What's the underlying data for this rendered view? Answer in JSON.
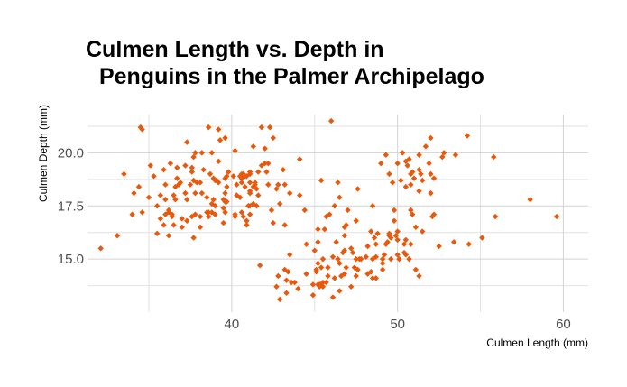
{
  "chart_data": {
    "type": "scatter",
    "title_line1": "Culmen Length vs. Depth in",
    "title_line2": " Penguins in the Palmer Archipelago",
    "xlabel": "Culmen Length (mm)",
    "ylabel": "Culmen Depth (mm)",
    "xlim": [
      31,
      61.5
    ],
    "ylim": [
      12.5,
      22
    ],
    "x_ticks": [
      40,
      50,
      60
    ],
    "x_tick_labels": [
      "40",
      "50",
      "60"
    ],
    "y_ticks": [
      15.0,
      17.5,
      20.0
    ],
    "y_tick_labels": [
      "15.0",
      "17.5",
      "20.0"
    ],
    "grid": true,
    "point_color": "#e8590c",
    "points": [
      [
        32.1,
        15.5
      ],
      [
        33.1,
        16.1
      ],
      [
        33.5,
        19.0
      ],
      [
        34.0,
        17.1
      ],
      [
        34.1,
        18.1
      ],
      [
        34.4,
        18.4
      ],
      [
        34.5,
        21.2
      ],
      [
        34.6,
        17.2
      ],
      [
        34.6,
        21.1
      ],
      [
        35.0,
        17.9
      ],
      [
        35.1,
        19.4
      ],
      [
        35.3,
        18.9
      ],
      [
        35.5,
        16.2
      ],
      [
        35.5,
        17.5
      ],
      [
        35.7,
        16.9
      ],
      [
        35.7,
        18.0
      ],
      [
        35.9,
        16.6
      ],
      [
        35.9,
        19.2
      ],
      [
        36.0,
        17.1
      ],
      [
        36.0,
        17.8
      ],
      [
        36.0,
        18.5
      ],
      [
        36.2,
        16.1
      ],
      [
        36.2,
        17.2
      ],
      [
        36.2,
        17.3
      ],
      [
        36.3,
        19.5
      ],
      [
        36.4,
        17.0
      ],
      [
        36.4,
        17.1
      ],
      [
        36.5,
        16.6
      ],
      [
        36.5,
        18.0
      ],
      [
        36.6,
        17.8
      ],
      [
        36.6,
        18.4
      ],
      [
        36.7,
        18.8
      ],
      [
        36.7,
        19.3
      ],
      [
        36.8,
        18.5
      ],
      [
        36.9,
        18.6
      ],
      [
        37.0,
        16.5
      ],
      [
        37.0,
        16.9
      ],
      [
        37.2,
        18.1
      ],
      [
        37.2,
        19.4
      ],
      [
        37.3,
        16.8
      ],
      [
        37.3,
        17.8
      ],
      [
        37.3,
        20.5
      ],
      [
        37.5,
        18.5
      ],
      [
        37.6,
        17.0
      ],
      [
        37.6,
        19.1
      ],
      [
        37.6,
        19.3
      ],
      [
        37.7,
        16.0
      ],
      [
        37.7,
        18.7
      ],
      [
        37.7,
        19.8
      ],
      [
        37.8,
        17.1
      ],
      [
        37.8,
        18.1
      ],
      [
        37.8,
        20.0
      ],
      [
        37.9,
        18.6
      ],
      [
        38.1,
        16.5
      ],
      [
        38.1,
        17.0
      ],
      [
        38.1,
        18.6
      ],
      [
        38.2,
        18.1
      ],
      [
        38.2,
        20.0
      ],
      [
        38.3,
        19.2
      ],
      [
        38.5,
        17.2
      ],
      [
        38.5,
        17.9
      ],
      [
        38.6,
        17.0
      ],
      [
        38.6,
        17.2
      ],
      [
        38.6,
        21.2
      ],
      [
        38.7,
        19.0
      ],
      [
        38.8,
        17.2
      ],
      [
        38.8,
        17.6
      ],
      [
        38.8,
        20.0
      ],
      [
        38.9,
        17.8
      ],
      [
        38.9,
        18.8
      ],
      [
        39.0,
        17.1
      ],
      [
        39.0,
        17.5
      ],
      [
        39.0,
        18.7
      ],
      [
        39.1,
        18.7
      ],
      [
        39.2,
        18.6
      ],
      [
        39.2,
        19.6
      ],
      [
        39.2,
        21.1
      ],
      [
        39.3,
        20.6
      ],
      [
        39.5,
        16.7
      ],
      [
        39.5,
        17.4
      ],
      [
        39.5,
        17.8
      ],
      [
        39.6,
        17.2
      ],
      [
        39.6,
        17.7
      ],
      [
        39.6,
        18.1
      ],
      [
        39.6,
        18.8
      ],
      [
        39.6,
        20.7
      ],
      [
        39.7,
        17.7
      ],
      [
        39.7,
        18.4
      ],
      [
        39.7,
        18.9
      ],
      [
        39.8,
        19.1
      ],
      [
        40.1,
        18.9
      ],
      [
        40.2,
        17.0
      ],
      [
        40.2,
        17.1
      ],
      [
        40.2,
        20.1
      ],
      [
        40.3,
        18.0
      ],
      [
        40.3,
        18.5
      ],
      [
        40.5,
        17.9
      ],
      [
        40.5,
        18.9
      ],
      [
        40.6,
        17.2
      ],
      [
        40.6,
        18.6
      ],
      [
        40.6,
        18.8
      ],
      [
        40.6,
        19.0
      ],
      [
        40.7,
        17.0
      ],
      [
        40.7,
        19.0
      ],
      [
        40.8,
        18.4
      ],
      [
        40.8,
        18.9
      ],
      [
        40.9,
        16.6
      ],
      [
        40.9,
        16.8
      ],
      [
        40.9,
        18.9
      ],
      [
        41.0,
        17.5
      ],
      [
        41.1,
        17.1
      ],
      [
        41.1,
        17.5
      ],
      [
        41.1,
        18.1
      ],
      [
        41.1,
        18.2
      ],
      [
        41.1,
        18.6
      ],
      [
        41.1,
        19.0
      ],
      [
        41.1,
        19.1
      ],
      [
        41.3,
        17.6
      ],
      [
        41.3,
        18.4
      ],
      [
        41.3,
        20.3
      ],
      [
        41.4,
        18.5
      ],
      [
        41.4,
        18.6
      ],
      [
        41.5,
        17.5
      ],
      [
        41.5,
        18.3
      ],
      [
        41.6,
        18.0
      ],
      [
        41.6,
        19.1
      ],
      [
        41.7,
        14.7
      ],
      [
        41.8,
        19.4
      ],
      [
        41.8,
        21.2
      ],
      [
        42.0,
        19.5
      ],
      [
        42.0,
        20.2
      ],
      [
        42.1,
        19.1
      ],
      [
        42.2,
        18.5
      ],
      [
        42.2,
        19.5
      ],
      [
        42.3,
        21.2
      ],
      [
        42.4,
        17.3
      ],
      [
        42.5,
        16.7
      ],
      [
        42.5,
        20.7
      ],
      [
        42.7,
        18.3
      ],
      [
        42.7,
        13.7
      ],
      [
        42.8,
        14.2
      ],
      [
        42.8,
        18.5
      ],
      [
        42.9,
        13.1
      ],
      [
        42.9,
        17.6
      ],
      [
        43.1,
        19.2
      ],
      [
        43.2,
        14.5
      ],
      [
        43.2,
        16.6
      ],
      [
        43.2,
        18.5
      ],
      [
        43.3,
        13.4
      ],
      [
        43.3,
        14.0
      ],
      [
        43.4,
        14.4
      ],
      [
        43.5,
        15.2
      ],
      [
        43.5,
        18.1
      ],
      [
        43.6,
        13.9
      ],
      [
        43.8,
        13.9
      ],
      [
        44.0,
        13.6
      ],
      [
        44.1,
        18.0
      ],
      [
        44.1,
        19.7
      ],
      [
        44.4,
        17.3
      ],
      [
        44.5,
        14.3
      ],
      [
        44.5,
        15.7
      ],
      [
        44.9,
        13.3
      ],
      [
        44.9,
        13.8
      ],
      [
        45.0,
        15.4
      ],
      [
        45.1,
        14.4
      ],
      [
        45.1,
        14.5
      ],
      [
        45.2,
        13.8
      ],
      [
        45.2,
        14.8
      ],
      [
        45.2,
        15.8
      ],
      [
        45.2,
        16.4
      ],
      [
        45.3,
        13.7
      ],
      [
        45.3,
        13.8
      ],
      [
        45.4,
        14.6
      ],
      [
        45.4,
        18.7
      ],
      [
        45.5,
        13.7
      ],
      [
        45.5,
        13.9
      ],
      [
        45.5,
        15.0
      ],
      [
        45.6,
        16.4
      ],
      [
        45.7,
        13.9
      ],
      [
        45.7,
        17.0
      ],
      [
        45.8,
        14.2
      ],
      [
        45.8,
        14.6
      ],
      [
        45.9,
        17.1
      ],
      [
        46.0,
        21.5
      ],
      [
        46.1,
        13.2
      ],
      [
        46.1,
        15.1
      ],
      [
        46.2,
        14.1
      ],
      [
        46.2,
        17.5
      ],
      [
        46.3,
        15.8
      ],
      [
        46.4,
        15.0
      ],
      [
        46.4,
        18.6
      ],
      [
        46.5,
        13.5
      ],
      [
        46.5,
        14.8
      ],
      [
        46.5,
        17.9
      ],
      [
        46.6,
        14.2
      ],
      [
        46.7,
        15.3
      ],
      [
        46.8,
        14.3
      ],
      [
        46.8,
        15.4
      ],
      [
        46.8,
        16.1
      ],
      [
        46.8,
        16.5
      ],
      [
        46.9,
        14.6
      ],
      [
        46.9,
        16.6
      ],
      [
        47.0,
        17.3
      ],
      [
        47.2,
        13.7
      ],
      [
        47.2,
        15.5
      ],
      [
        47.3,
        15.3
      ],
      [
        47.4,
        14.6
      ],
      [
        47.5,
        14.2
      ],
      [
        47.5,
        15.0
      ],
      [
        47.5,
        16.8
      ],
      [
        47.6,
        14.5
      ],
      [
        47.6,
        18.3
      ],
      [
        47.7,
        15.0
      ],
      [
        47.8,
        15.0
      ],
      [
        48.1,
        15.1
      ],
      [
        48.2,
        14.3
      ],
      [
        48.2,
        15.6
      ],
      [
        48.4,
        14.4
      ],
      [
        48.4,
        16.3
      ],
      [
        48.5,
        14.1
      ],
      [
        48.5,
        15.0
      ],
      [
        48.5,
        17.5
      ],
      [
        48.6,
        16.0
      ],
      [
        48.7,
        14.1
      ],
      [
        48.7,
        15.1
      ],
      [
        48.7,
        15.7
      ],
      [
        48.8,
        16.2
      ],
      [
        49.0,
        19.5
      ],
      [
        49.1,
        14.5
      ],
      [
        49.1,
        14.8
      ],
      [
        49.1,
        15.0
      ],
      [
        49.2,
        15.2
      ],
      [
        49.3,
        15.7
      ],
      [
        49.3,
        19.9
      ],
      [
        49.4,
        15.8
      ],
      [
        49.5,
        16.1
      ],
      [
        49.5,
        16.2
      ],
      [
        49.5,
        19.0
      ],
      [
        49.6,
        15.0
      ],
      [
        49.6,
        16.0
      ],
      [
        49.7,
        18.6
      ],
      [
        49.8,
        16.8
      ],
      [
        49.8,
        17.3
      ],
      [
        49.9,
        16.1
      ],
      [
        50.0,
        15.2
      ],
      [
        50.0,
        15.9
      ],
      [
        50.0,
        16.3
      ],
      [
        50.0,
        19.5
      ],
      [
        50.1,
        15.0
      ],
      [
        50.2,
        18.7
      ],
      [
        50.3,
        20.0
      ],
      [
        50.4,
        15.3
      ],
      [
        50.4,
        15.7
      ],
      [
        50.5,
        15.2
      ],
      [
        50.5,
        15.9
      ],
      [
        50.5,
        18.4
      ],
      [
        50.5,
        19.6
      ],
      [
        50.6,
        19.4
      ],
      [
        50.7,
        15.0
      ],
      [
        50.7,
        19.7
      ],
      [
        50.8,
        15.7
      ],
      [
        50.8,
        17.3
      ],
      [
        50.8,
        18.5
      ],
      [
        50.8,
        19.0
      ],
      [
        50.9,
        17.1
      ],
      [
        50.9,
        19.1
      ],
      [
        51.0,
        18.8
      ],
      [
        51.1,
        14.5
      ],
      [
        51.1,
        16.5
      ],
      [
        51.3,
        14.2
      ],
      [
        51.3,
        18.2
      ],
      [
        51.3,
        19.2
      ],
      [
        51.3,
        19.9
      ],
      [
        51.4,
        19.0
      ],
      [
        51.5,
        16.3
      ],
      [
        51.5,
        18.7
      ],
      [
        51.7,
        20.3
      ],
      [
        51.9,
        19.5
      ],
      [
        52.0,
        18.1
      ],
      [
        52.0,
        19.0
      ],
      [
        52.0,
        20.7
      ],
      [
        52.1,
        17.0
      ],
      [
        52.2,
        17.1
      ],
      [
        52.2,
        18.8
      ],
      [
        52.5,
        15.6
      ],
      [
        52.7,
        19.8
      ],
      [
        52.8,
        20.0
      ],
      [
        53.4,
        15.8
      ],
      [
        53.5,
        19.9
      ],
      [
        54.2,
        20.8
      ],
      [
        54.3,
        15.7
      ],
      [
        55.1,
        16.0
      ],
      [
        55.8,
        19.8
      ],
      [
        55.9,
        17.0
      ],
      [
        58.0,
        17.8
      ],
      [
        59.6,
        17.0
      ]
    ]
  }
}
